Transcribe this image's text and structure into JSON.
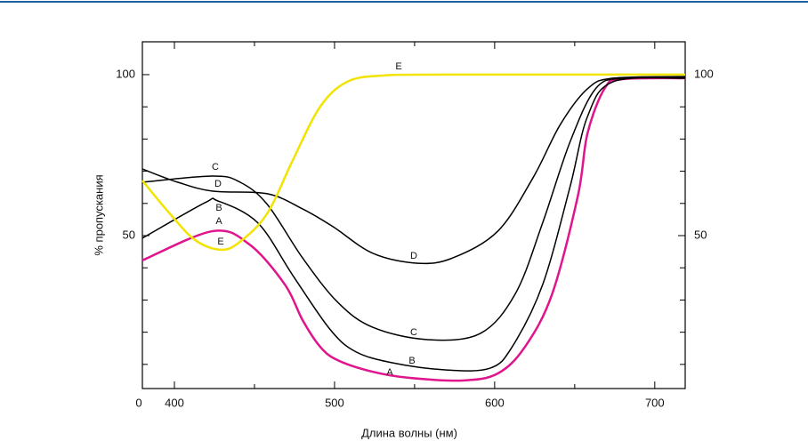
{
  "chart_data": {
    "type": "line",
    "xlabel": "Длина волны (нм)",
    "ylabel": "% пропускания",
    "xlim": [
      380,
      719
    ],
    "ylim": [
      2.5,
      110.2
    ],
    "xticks": [
      {
        "value": 380,
        "label": "0"
      },
      400,
      500,
      600,
      700
    ],
    "xminor_ticks": [
      450,
      550,
      650
    ],
    "yticks": [
      50,
      100
    ],
    "yminor_ticks": [
      10,
      20,
      30,
      40,
      60,
      70,
      80,
      90
    ],
    "right_axis_labels": true,
    "series": [
      {
        "name": "A",
        "color": "#e0148c",
        "width": 2.5,
        "x": [
          380,
          424,
          447,
          469,
          480,
          491,
          502,
          524,
          547,
          580,
          602,
          619,
          636,
          652,
          658,
          669,
          680,
          719
        ],
        "values": [
          42.3,
          51.4,
          47.2,
          34.8,
          23.8,
          15.5,
          11.3,
          7.7,
          5.8,
          5,
          7.2,
          15.5,
          32,
          62.4,
          81.8,
          96,
          98.6,
          98.9
        ]
      },
      {
        "name": "B",
        "color": "#000000",
        "width": 1.5,
        "x": [
          380,
          419,
          427,
          452,
          474,
          497,
          513,
          536,
          569,
          597,
          611,
          630,
          647,
          658,
          674,
          719
        ],
        "values": [
          49.2,
          60.2,
          60.8,
          54,
          37.6,
          21,
          14,
          10.5,
          8.3,
          8.8,
          15.5,
          34.8,
          65,
          87,
          97.8,
          98.9
        ]
      },
      {
        "name": "C",
        "color": "#000000",
        "width": 1.5,
        "x": [
          380,
          424,
          441,
          458,
          480,
          502,
          524,
          558,
          591,
          613,
          630,
          647,
          663,
          680,
          719
        ],
        "values": [
          66.6,
          68.5,
          66.6,
          59.7,
          43.1,
          29.3,
          21.5,
          17.7,
          19.6,
          32,
          54,
          79,
          95.6,
          98.9,
          99.2
        ]
      },
      {
        "name": "D",
        "color": "#000000",
        "width": 1.5,
        "x": [
          380,
          402,
          424,
          458,
          480,
          499,
          524,
          552,
          574,
          602,
          624,
          641,
          658,
          674,
          719
        ],
        "values": [
          70.7,
          66.6,
          63.8,
          63,
          58.3,
          52.8,
          44.5,
          41.4,
          43.1,
          51.4,
          68,
          84.5,
          95.6,
          98.9,
          99.4
        ]
      },
      {
        "name": "E",
        "color": "#f2e300",
        "width": 2.5,
        "x": [
          380,
          397,
          413,
          429,
          441,
          458,
          474,
          491,
          508,
          530,
          569,
          719
        ],
        "values": [
          67.1,
          56.9,
          48.6,
          45.6,
          48.1,
          56.9,
          73.5,
          90,
          97.8,
          99.7,
          100,
          100
        ]
      }
    ]
  }
}
